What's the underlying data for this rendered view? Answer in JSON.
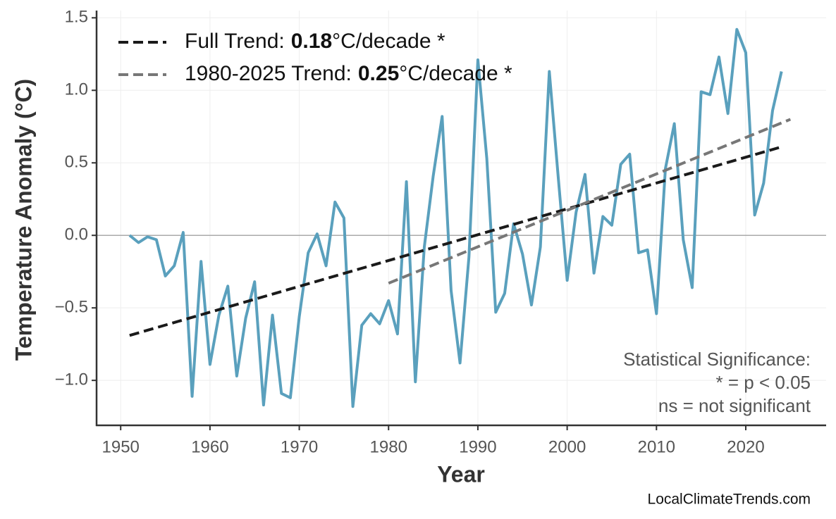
{
  "chart_data": {
    "type": "line",
    "xlabel": "Year",
    "ylabel": "Temperature Anomaly (°C)",
    "xlim": [
      1947.3,
      2029.0
    ],
    "ylim": [
      -1.31,
      1.55
    ],
    "xticks": [
      1950,
      1960,
      1970,
      1980,
      1990,
      2000,
      2010,
      2020
    ],
    "yticks": [
      {
        "value": -1.0,
        "label": "−1.0"
      },
      {
        "value": -0.5,
        "label": "−0.5"
      },
      {
        "value": 0,
        "label": "0.0"
      },
      {
        "value": 0.5,
        "label": "0.5"
      },
      {
        "value": 1.0,
        "label": "1.0"
      },
      {
        "value": 1.5,
        "label": "1.5"
      }
    ],
    "grid": true,
    "zero_line": true,
    "series": [
      {
        "color": "#5aa0bd",
        "style": "solid",
        "x": [
          1951,
          1952,
          1953,
          1954,
          1955,
          1956,
          1957,
          1958,
          1959,
          1960,
          1961,
          1962,
          1963,
          1964,
          1965,
          1966,
          1967,
          1968,
          1969,
          1970,
          1971,
          1972,
          1973,
          1974,
          1975,
          1976,
          1977,
          1978,
          1979,
          1980,
          1981,
          1982,
          1983,
          1984,
          1985,
          1986,
          1987,
          1988,
          1989,
          1990,
          1991,
          1992,
          1993,
          1994,
          1995,
          1996,
          1997,
          1998,
          1999,
          2000,
          2001,
          2002,
          2003,
          2004,
          2005,
          2006,
          2007,
          2008,
          2009,
          2010,
          2011,
          2012,
          2013,
          2014,
          2015,
          2016,
          2017,
          2018,
          2019,
          2020,
          2021,
          2022,
          2023,
          2024
        ],
        "values": [
          0.0,
          -0.05,
          -0.01,
          -0.03,
          -0.28,
          -0.21,
          0.02,
          -1.11,
          -0.18,
          -0.89,
          -0.55,
          -0.35,
          -0.97,
          -0.57,
          -0.32,
          -1.17,
          -0.55,
          -1.09,
          -1.12,
          -0.56,
          -0.12,
          0.01,
          -0.21,
          0.23,
          0.12,
          -1.18,
          -0.62,
          -0.54,
          -0.61,
          -0.45,
          -0.68,
          0.37,
          -1.01,
          -0.08,
          0.41,
          0.82,
          -0.38,
          -0.88,
          -0.15,
          1.21,
          0.53,
          -0.53,
          -0.4,
          0.08,
          -0.13,
          -0.48,
          -0.08,
          1.13,
          0.4,
          -0.31,
          0.16,
          0.42,
          -0.26,
          0.13,
          0.07,
          0.49,
          0.56,
          -0.12,
          -0.1,
          -0.54,
          0.46,
          0.77,
          -0.03,
          -0.36,
          0.99,
          0.97,
          1.23,
          0.84,
          1.42,
          1.26,
          0.14,
          0.36,
          0.86,
          1.13
        ]
      },
      {
        "color": "#1a1a1a",
        "style": "dashed",
        "x": [
          1951,
          2024
        ],
        "values": [
          -0.69,
          0.61
        ],
        "legend": {
          "label": "Full Trend:",
          "slope": "0.18",
          "suffix": "°C/decade *"
        }
      },
      {
        "color": "#777777",
        "style": "dashed",
        "x": [
          1980,
          2025
        ],
        "values": [
          -0.33,
          0.8
        ],
        "legend": {
          "label": "1980-2025 Trend:",
          "slope": "0.25",
          "suffix": "°C/decade *"
        }
      }
    ],
    "legend_position": "upper left",
    "annotation": [
      "Statistical Significance:",
      "* = p < 0.05",
      "ns = not significant"
    ],
    "source": "LocalClimateTrends.com"
  }
}
